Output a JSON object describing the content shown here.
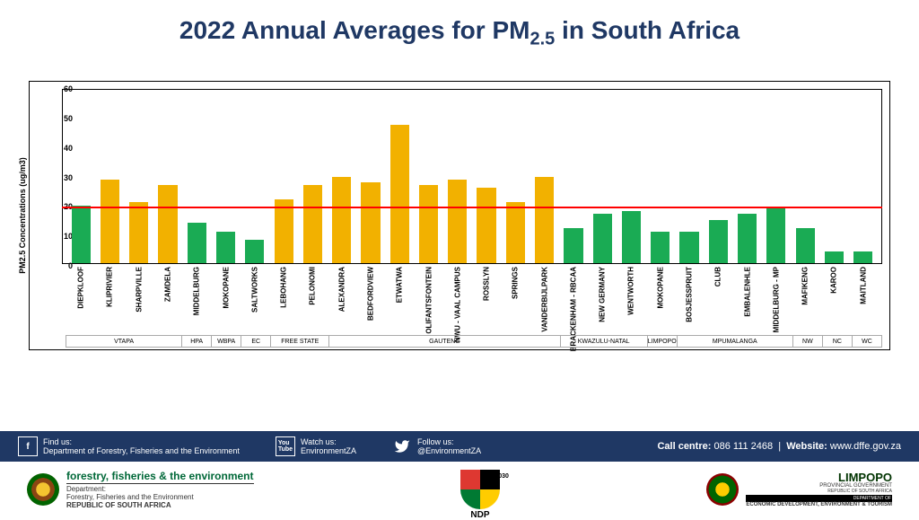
{
  "title_prefix": "2022 Annual Averages for PM",
  "title_sub": "2.5",
  "title_suffix": " in South Africa",
  "chart": {
    "type": "bar",
    "ylabel": "PM2.5 Concentrations (ug/m3)",
    "ylim": [
      0,
      60
    ],
    "ytick_step": 10,
    "ref_line_value": 20,
    "ref_line_color": "#ff0000",
    "bar_color_above": "#f2b100",
    "bar_color_below": "#1aab54",
    "threshold": 20,
    "stations": [
      {
        "name": "DIEPKLOOF",
        "value": 20,
        "group": "VTAPA"
      },
      {
        "name": "KLIPRIVIER",
        "value": 29,
        "group": "VTAPA"
      },
      {
        "name": "SHARPVILLE",
        "value": 21,
        "group": "VTAPA"
      },
      {
        "name": "ZAMDELA",
        "value": 27,
        "group": "VTAPA"
      },
      {
        "name": "MIDDELBURG",
        "value": 14,
        "group": "HPA"
      },
      {
        "name": "MOKOPANE",
        "value": 11,
        "group": "WBPA"
      },
      {
        "name": "SALTWORKS",
        "value": 8,
        "group": "EC"
      },
      {
        "name": "LEBOHANG",
        "value": 22,
        "group": "FREE STATE"
      },
      {
        "name": "PELONOMI",
        "value": 27,
        "group": "FREE STATE"
      },
      {
        "name": "ALEXANDRA",
        "value": 30,
        "group": "GAUTENG"
      },
      {
        "name": "BEDFORDVIEW",
        "value": 28,
        "group": "GAUTENG"
      },
      {
        "name": "ETWATWA",
        "value": 48,
        "group": "GAUTENG"
      },
      {
        "name": "OLIFANTSFONTEIN",
        "value": 27,
        "group": "GAUTENG"
      },
      {
        "name": "NWU - VAAL CAMPUS",
        "value": 29,
        "group": "GAUTENG"
      },
      {
        "name": "ROSSLYN",
        "value": 26,
        "group": "GAUTENG"
      },
      {
        "name": "SPRINGS",
        "value": 21,
        "group": "GAUTENG"
      },
      {
        "name": "VANDERBIJLPARK",
        "value": 30,
        "group": "GAUTENG"
      },
      {
        "name": "BRACKENHAM - RBCAA",
        "value": 12,
        "group": "KWAZULU-NATAL"
      },
      {
        "name": "NEW GERMANY",
        "value": 17,
        "group": "KWAZULU-NATAL"
      },
      {
        "name": "WENTWORTH",
        "value": 18,
        "group": "KWAZULU-NATAL"
      },
      {
        "name": "MOKOPANE",
        "value": 11,
        "group": "LIMPOPO"
      },
      {
        "name": "BOSJESSPRUIT",
        "value": 11,
        "group": "MPUMALANGA"
      },
      {
        "name": "CLUB",
        "value": 15,
        "group": "MPUMALANGA"
      },
      {
        "name": "EMBALENHLE",
        "value": 17,
        "group": "MPUMALANGA"
      },
      {
        "name": "MIDDELBURG - MP",
        "value": 19,
        "group": "MPUMALANGA"
      },
      {
        "name": "MAFIKENG",
        "value": 12,
        "group": "NW"
      },
      {
        "name": "KAROO",
        "value": 4,
        "group": "NC"
      },
      {
        "name": "MAITLAND",
        "value": 4,
        "group": "WC"
      }
    ],
    "groups": [
      {
        "name": "VTAPA",
        "count": 4
      },
      {
        "name": "HPA",
        "count": 1
      },
      {
        "name": "WBPA",
        "count": 1
      },
      {
        "name": "EC",
        "count": 1
      },
      {
        "name": "FREE STATE",
        "count": 2
      },
      {
        "name": "GAUTENG",
        "count": 8
      },
      {
        "name": "KWAZULU-NATAL",
        "count": 3
      },
      {
        "name": "LIMPOPO",
        "count": 1
      },
      {
        "name": "MPUMALANGA",
        "count": 4
      },
      {
        "name": "NW",
        "count": 1
      },
      {
        "name": "NC",
        "count": 1
      },
      {
        "name": "WC",
        "count": 1
      }
    ]
  },
  "footer": {
    "fb_label": "Find us:",
    "fb_text": "Department of Forestry, Fisheries and the Environment",
    "yt_label": "Watch us:",
    "yt_text": "EnvironmentZA",
    "tw_label": "Follow us:",
    "tw_text": "@EnvironmentZA",
    "call_label": "Call centre:",
    "call_value": "086 111 2468",
    "web_label": "Website:",
    "web_value": "www.dffe.gov.za",
    "dept_title": "forestry, fisheries & the environment",
    "dept_sub1": "Department:",
    "dept_sub2": "Forestry, Fisheries and the Environment",
    "dept_sub3": "REPUBLIC OF SOUTH AFRICA",
    "ndp": "NDP",
    "ndp_year": "2030",
    "limpopo_title": "LIMPOPO",
    "limpopo_sub1": "PROVINCIAL GOVERNMENT",
    "limpopo_sub2": "REPUBLIC OF SOUTH AFRICA",
    "limpopo_dept1": "DEPARTMENT OF",
    "limpopo_dept2": "ECONOMIC DEVELOPMENT, ENVIRONMENT & TOURISM"
  }
}
